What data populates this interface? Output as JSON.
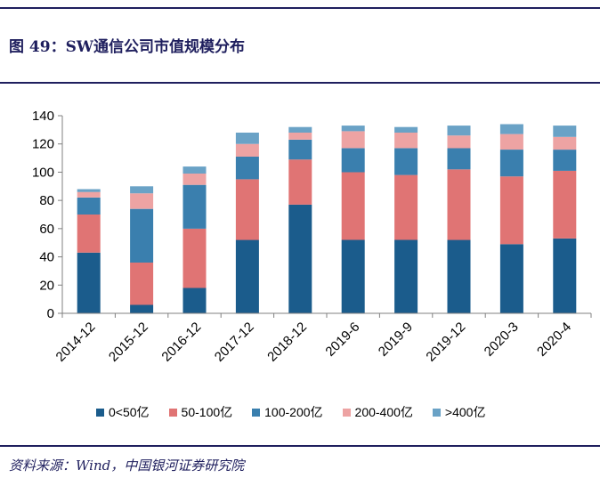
{
  "header": {
    "figure_title": "图 49：SW通信公司市值规模分布"
  },
  "footer": {
    "source": "资料来源：Wind，中国银河证券研究院"
  },
  "chart_data": {
    "type": "bar",
    "stacked": true,
    "title": "SW通信公司市值规模分布",
    "xlabel": "",
    "ylabel": "",
    "ylim": [
      0,
      140
    ],
    "yticks": [
      0,
      20,
      40,
      60,
      80,
      100,
      120,
      140
    ],
    "categories": [
      "2014-12",
      "2015-12",
      "2016-12",
      "2017-12",
      "2018-12",
      "2019-6",
      "2019-9",
      "2019-12",
      "2020-3",
      "2020-4"
    ],
    "series": [
      {
        "name": "0<50亿",
        "color": "#1b5c8c",
        "values": [
          43,
          6,
          18,
          52,
          77,
          52,
          52,
          52,
          49,
          53
        ]
      },
      {
        "name": "50-100亿",
        "color": "#e07474",
        "values": [
          27,
          30,
          42,
          43,
          32,
          48,
          46,
          50,
          48,
          48
        ]
      },
      {
        "name": "100-200亿",
        "color": "#3a7fae",
        "values": [
          12,
          38,
          31,
          16,
          14,
          17,
          19,
          15,
          19,
          15
        ]
      },
      {
        "name": "200-400亿",
        "color": "#eda3a3",
        "values": [
          4,
          11,
          8,
          9,
          5,
          12,
          11,
          9,
          11,
          9
        ]
      },
      {
        "name": ">400亿",
        "color": "#6aa2c6",
        "values": [
          2,
          5,
          5,
          8,
          4,
          4,
          4,
          7,
          7,
          8
        ]
      }
    ],
    "legend_position": "bottom",
    "grid": false
  }
}
